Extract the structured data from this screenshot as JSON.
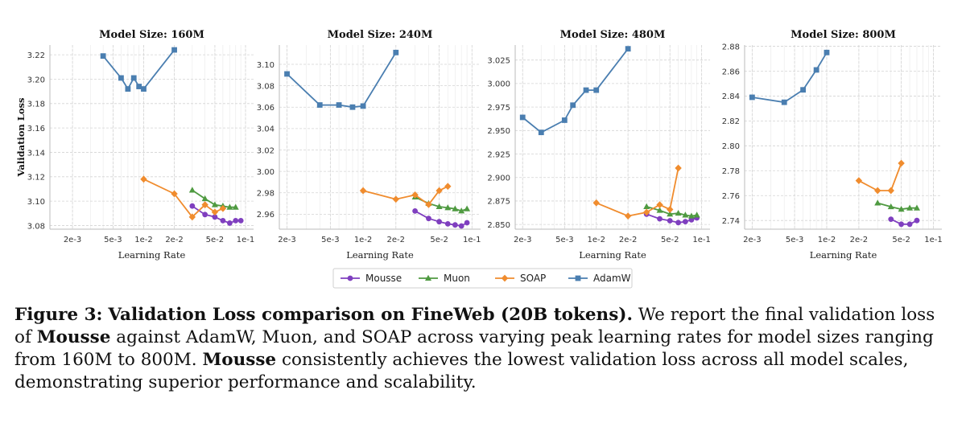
{
  "figure": {
    "ylabel": "Validation Loss",
    "colors": {
      "Mousse": "#7f3fbf",
      "Muon": "#4f9a41",
      "SOAP": "#f08c2e",
      "AdamW": "#4a7eb0"
    },
    "legend": [
      "Mousse",
      "Muon",
      "SOAP",
      "AdamW"
    ]
  },
  "chart_data": [
    {
      "type": "line",
      "title": "Model Size: 160M",
      "xlabel": "Learning Rate",
      "ylabel": "Validation Loss",
      "xscale": "log",
      "xlim": [
        0.0012,
        0.12
      ],
      "ylim": [
        3.077,
        3.228
      ],
      "xticks": [
        {
          "v": 0.002,
          "label": "2e-3"
        },
        {
          "v": 0.005,
          "label": "5e-3"
        },
        {
          "v": 0.01,
          "label": "1e-2"
        },
        {
          "v": 0.02,
          "label": "2e-2"
        },
        {
          "v": 0.05,
          "label": "5e-2"
        },
        {
          "v": 0.1,
          "label": "1e-1"
        }
      ],
      "yticks": [
        {
          "v": 3.08,
          "label": "3.08"
        },
        {
          "v": 3.1,
          "label": "3.10"
        },
        {
          "v": 3.12,
          "label": "3.12"
        },
        {
          "v": 3.14,
          "label": "3.14"
        },
        {
          "v": 3.16,
          "label": "3.16"
        },
        {
          "v": 3.18,
          "label": "3.18"
        },
        {
          "v": 3.2,
          "label": "3.20"
        },
        {
          "v": 3.22,
          "label": "3.22"
        }
      ],
      "series": [
        {
          "name": "Mousse",
          "x": [
            0.03,
            0.04,
            0.05,
            0.06,
            0.07,
            0.08,
            0.09
          ],
          "y": [
            3.096,
            3.089,
            3.087,
            3.084,
            3.082,
            3.084,
            3.084
          ]
        },
        {
          "name": "Muon",
          "x": [
            0.03,
            0.04,
            0.05,
            0.06,
            0.07,
            0.08
          ],
          "y": [
            3.109,
            3.102,
            3.097,
            3.096,
            3.095,
            3.095
          ]
        },
        {
          "name": "SOAP",
          "x": [
            0.01,
            0.02,
            0.03,
            0.04,
            0.05,
            0.06
          ],
          "y": [
            3.118,
            3.106,
            3.087,
            3.097,
            3.091,
            3.094
          ]
        },
        {
          "name": "AdamW",
          "x": [
            0.004,
            0.006,
            0.007,
            0.008,
            0.009,
            0.01,
            0.02
          ],
          "y": [
            3.219,
            3.201,
            3.192,
            3.201,
            3.194,
            3.192,
            3.224
          ]
        }
      ]
    },
    {
      "type": "line",
      "title": "Model Size: 240M",
      "xlabel": "Learning Rate",
      "ylabel": "",
      "xscale": "log",
      "xlim": [
        0.0017,
        0.12
      ],
      "ylim": [
        2.946,
        3.118
      ],
      "xticks": [
        {
          "v": 0.002,
          "label": "2e-3"
        },
        {
          "v": 0.005,
          "label": "5e-3"
        },
        {
          "v": 0.01,
          "label": "1e-2"
        },
        {
          "v": 0.02,
          "label": "2e-2"
        },
        {
          "v": 0.05,
          "label": "5e-2"
        },
        {
          "v": 0.1,
          "label": "1e-1"
        }
      ],
      "yticks": [
        {
          "v": 2.96,
          "label": "2.96"
        },
        {
          "v": 2.98,
          "label": "2.98"
        },
        {
          "v": 3.0,
          "label": "3.00"
        },
        {
          "v": 3.02,
          "label": "3.02"
        },
        {
          "v": 3.04,
          "label": "3.04"
        },
        {
          "v": 3.06,
          "label": "3.06"
        },
        {
          "v": 3.08,
          "label": "3.08"
        },
        {
          "v": 3.1,
          "label": "3.10"
        }
      ],
      "series": [
        {
          "name": "Mousse",
          "x": [
            0.03,
            0.04,
            0.05,
            0.06,
            0.07,
            0.08,
            0.09
          ],
          "y": [
            2.963,
            2.956,
            2.953,
            2.951,
            2.95,
            2.949,
            2.952
          ]
        },
        {
          "name": "Muon",
          "x": [
            0.03,
            0.04,
            0.05,
            0.06,
            0.07,
            0.08,
            0.09
          ],
          "y": [
            2.976,
            2.97,
            2.967,
            2.966,
            2.965,
            2.963,
            2.965
          ]
        },
        {
          "name": "SOAP",
          "x": [
            0.01,
            0.02,
            0.03,
            0.04,
            0.05,
            0.06
          ],
          "y": [
            2.982,
            2.974,
            2.978,
            2.969,
            2.982,
            2.986
          ]
        },
        {
          "name": "AdamW",
          "x": [
            0.002,
            0.004,
            0.006,
            0.008,
            0.01,
            0.02
          ],
          "y": [
            3.091,
            3.062,
            3.062,
            3.06,
            3.061,
            3.111
          ]
        }
      ]
    },
    {
      "type": "line",
      "title": "Model Size: 480M",
      "xlabel": "Learning Rate",
      "ylabel": "",
      "xscale": "log",
      "xlim": [
        0.0017,
        0.12
      ],
      "ylim": [
        2.845,
        3.041
      ],
      "xticks": [
        {
          "v": 0.002,
          "label": "2e-3"
        },
        {
          "v": 0.005,
          "label": "5e-3"
        },
        {
          "v": 0.01,
          "label": "1e-2"
        },
        {
          "v": 0.02,
          "label": "2e-2"
        },
        {
          "v": 0.05,
          "label": "5e-2"
        },
        {
          "v": 0.1,
          "label": "1e-1"
        }
      ],
      "yticks": [
        {
          "v": 2.85,
          "label": "2.850"
        },
        {
          "v": 2.875,
          "label": "2.875"
        },
        {
          "v": 2.9,
          "label": "2.900"
        },
        {
          "v": 2.925,
          "label": "2.925"
        },
        {
          "v": 2.95,
          "label": "2.950"
        },
        {
          "v": 2.975,
          "label": "2.975"
        },
        {
          "v": 3.0,
          "label": "3.000"
        },
        {
          "v": 3.025,
          "label": "3.025"
        }
      ],
      "series": [
        {
          "name": "Mousse",
          "x": [
            0.03,
            0.04,
            0.05,
            0.06,
            0.07,
            0.08,
            0.09
          ],
          "y": [
            2.861,
            2.856,
            2.854,
            2.852,
            2.853,
            2.855,
            2.857
          ]
        },
        {
          "name": "Muon",
          "x": [
            0.03,
            0.04,
            0.05,
            0.06,
            0.07,
            0.08,
            0.09
          ],
          "y": [
            2.869,
            2.865,
            2.861,
            2.862,
            2.86,
            2.859,
            2.86
          ]
        },
        {
          "name": "SOAP",
          "x": [
            0.01,
            0.02,
            0.03,
            0.04,
            0.05,
            0.06
          ],
          "y": [
            2.873,
            2.859,
            2.863,
            2.871,
            2.866,
            2.91
          ]
        },
        {
          "name": "AdamW",
          "x": [
            0.002,
            0.003,
            0.005,
            0.006,
            0.008,
            0.01,
            0.02
          ],
          "y": [
            2.964,
            2.948,
            2.961,
            2.977,
            2.993,
            2.993,
            3.037
          ]
        }
      ]
    },
    {
      "type": "line",
      "title": "Model Size: 800M",
      "xlabel": "Learning Rate",
      "ylabel": "",
      "xscale": "log",
      "xlim": [
        0.0017,
        0.12
      ],
      "ylim": [
        2.733,
        2.881
      ],
      "xticks": [
        {
          "v": 0.002,
          "label": "2e-3"
        },
        {
          "v": 0.005,
          "label": "5e-3"
        },
        {
          "v": 0.01,
          "label": "1e-2"
        },
        {
          "v": 0.02,
          "label": "2e-2"
        },
        {
          "v": 0.05,
          "label": "5e-2"
        },
        {
          "v": 0.1,
          "label": "1e-1"
        }
      ],
      "yticks": [
        {
          "v": 2.74,
          "label": "2.74"
        },
        {
          "v": 2.76,
          "label": "2.76"
        },
        {
          "v": 2.78,
          "label": "2.78"
        },
        {
          "v": 2.8,
          "label": "2.80"
        },
        {
          "v": 2.82,
          "label": "2.82"
        },
        {
          "v": 2.84,
          "label": "2.84"
        },
        {
          "v": 2.86,
          "label": "2.86"
        },
        {
          "v": 2.88,
          "label": "2.88"
        }
      ],
      "series": [
        {
          "name": "Mousse",
          "x": [
            0.04,
            0.05,
            0.06,
            0.07
          ],
          "y": [
            2.741,
            2.737,
            2.737,
            2.74
          ]
        },
        {
          "name": "Muon",
          "x": [
            0.03,
            0.04,
            0.05,
            0.06,
            0.07
          ],
          "y": [
            2.754,
            2.751,
            2.749,
            2.75,
            2.75
          ]
        },
        {
          "name": "SOAP",
          "x": [
            0.02,
            0.03,
            0.04,
            0.05
          ],
          "y": [
            2.772,
            2.764,
            2.764,
            2.786
          ]
        },
        {
          "name": "AdamW",
          "x": [
            0.002,
            0.004,
            0.006,
            0.008,
            0.01
          ],
          "y": [
            2.839,
            2.835,
            2.845,
            2.861,
            2.875
          ]
        }
      ]
    }
  ],
  "caption": {
    "figure_label": "Figure 3:",
    "bold_title": "Validation Loss comparison on FineWeb (20B tokens).",
    "text1": " We report the final validation loss of ",
    "bold_mousse_1": "Mousse",
    "text2": " against AdamW, Muon, and SOAP across varying peak learning rates for model sizes ranging from 160M to 800M. ",
    "bold_mousse_2": "Mousse",
    "text3": " consistently achieves the lowest validation loss across all model scales, demonstrating superior performance and scalability."
  }
}
